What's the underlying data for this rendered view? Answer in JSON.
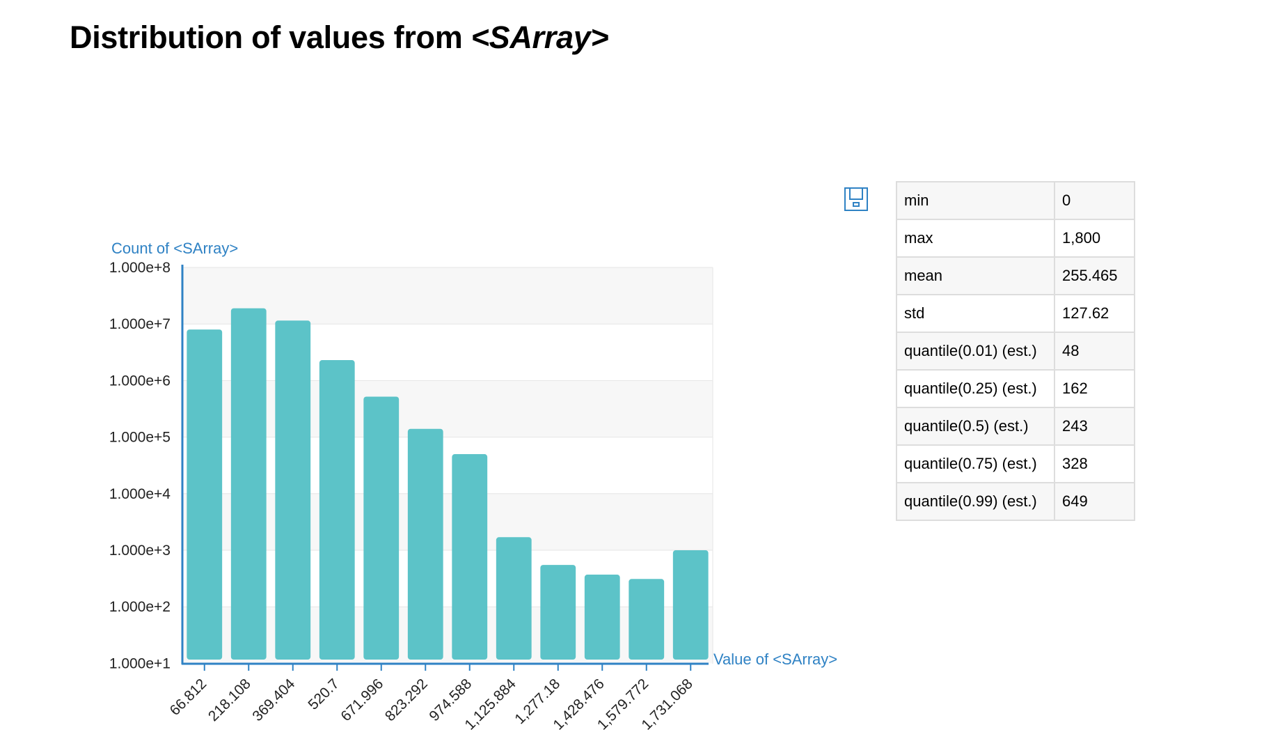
{
  "title": {
    "prefix": "Distribution of values from ",
    "object": "<SArray>"
  },
  "chart_data": {
    "type": "bar",
    "scale": "log",
    "ylabel": "Count of <SArray>",
    "xlabel": "Value of <SArray>",
    "ylim": [
      10,
      100000000
    ],
    "y_ticks": [
      "1.000e+1",
      "1.000e+2",
      "1.000e+3",
      "1.000e+4",
      "1.000e+5",
      "1.000e+6",
      "1.000e+7",
      "1.000e+8"
    ],
    "categories": [
      "66.812",
      "218.108",
      "369.404",
      "520.7",
      "671.996",
      "823.292",
      "974.588",
      "1,125.884",
      "1,277.18",
      "1,428.476",
      "1,579.772",
      "1,731.068"
    ],
    "values": [
      8000000,
      19000000,
      11500000,
      2300000,
      520000,
      140000,
      50000,
      1700,
      550,
      370,
      310,
      1000
    ],
    "bar_color": "#5cc3c8",
    "axis_color": "#2f82c4",
    "grid": true
  },
  "stats": [
    {
      "label": "min",
      "value": "0"
    },
    {
      "label": "max",
      "value": "1,800"
    },
    {
      "label": "mean",
      "value": "255.465"
    },
    {
      "label": "std",
      "value": "127.62"
    },
    {
      "label": "quantile(0.01) (est.)",
      "value": "48"
    },
    {
      "label": "quantile(0.25) (est.)",
      "value": "162"
    },
    {
      "label": "quantile(0.5) (est.)",
      "value": "243"
    },
    {
      "label": "quantile(0.75) (est.)",
      "value": "328"
    },
    {
      "label": "quantile(0.99) (est.)",
      "value": "649"
    }
  ],
  "icons": {
    "save": "floppy-disk-icon"
  }
}
